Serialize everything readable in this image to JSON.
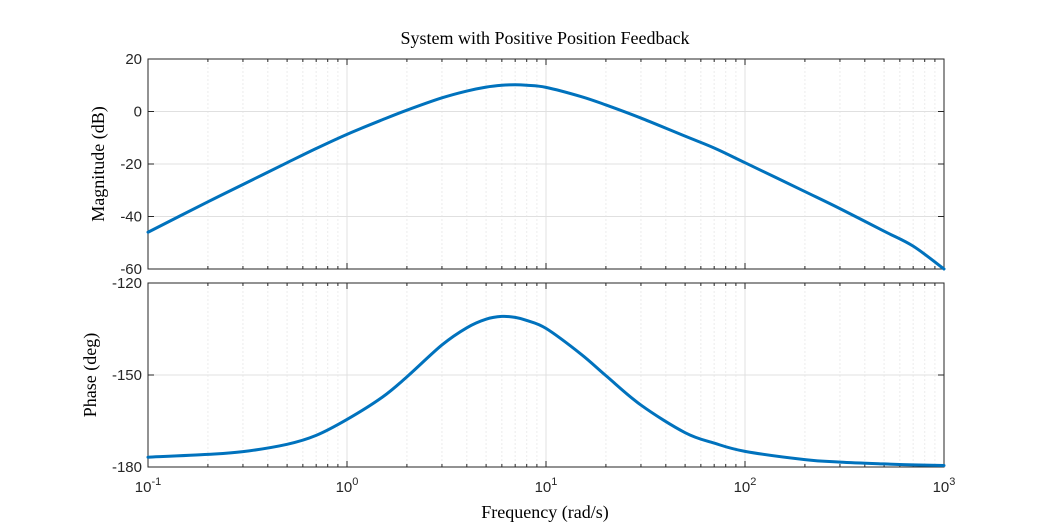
{
  "chart_data": [
    {
      "type": "line",
      "title": "System with Positive Position Feedback",
      "xlabel": "",
      "ylabel": "Magnitude (dB)",
      "xscale": "log",
      "xlim": [
        0.1,
        1000
      ],
      "ylim": [
        -60,
        20
      ],
      "yticks": [
        "20",
        "0",
        "-20",
        "-40",
        "-60"
      ],
      "grid": true,
      "series": [
        {
          "color": "#0072bd",
          "x": [
            0.1,
            0.2,
            0.3,
            0.5,
            0.7,
            1,
            1.5,
            2,
            3,
            4,
            5,
            6,
            7,
            8,
            10,
            15,
            20,
            30,
            50,
            70,
            100,
            200,
            300,
            500,
            700,
            1000
          ],
          "y": [
            -46,
            -34.4,
            -27.8,
            -19.5,
            -14.1,
            -8.7,
            -3.2,
            0.5,
            5.2,
            7.8,
            9.3,
            10,
            10.2,
            10,
            9.2,
            5.7,
            2.5,
            -2.5,
            -9.4,
            -13.9,
            -19.5,
            -30.5,
            -37,
            -45.6,
            -51.3,
            -60
          ]
        }
      ]
    },
    {
      "type": "line",
      "title": "",
      "xlabel": "Frequency (rad/s)",
      "ylabel": "Phase (deg)",
      "xscale": "log",
      "xlim": [
        0.1,
        1000
      ],
      "ylim": [
        -180,
        -120
      ],
      "yticks": [
        "-120",
        "-150",
        "-180"
      ],
      "xticks": [
        {
          "base": "10",
          "exp": "-1"
        },
        {
          "base": "10",
          "exp": "0"
        },
        {
          "base": "10",
          "exp": "1"
        },
        {
          "base": "10",
          "exp": "2"
        },
        {
          "base": "10",
          "exp": "3"
        }
      ],
      "grid": true,
      "series": [
        {
          "color": "#0072bd",
          "x": [
            0.1,
            0.2,
            0.3,
            0.5,
            0.7,
            1,
            1.5,
            2,
            3,
            4,
            5,
            6,
            7,
            8,
            10,
            15,
            20,
            30,
            50,
            70,
            100,
            200,
            300,
            500,
            700,
            1000
          ],
          "y": [
            -176.8,
            -175.9,
            -175,
            -172.6,
            -169.7,
            -164.5,
            -157.3,
            -150.6,
            -140.2,
            -134.6,
            -131.8,
            -130.9,
            -131.2,
            -132.2,
            -134.8,
            -143.2,
            -150.2,
            -159.8,
            -168.8,
            -172.2,
            -174.9,
            -177.6,
            -178.4,
            -179,
            -179.3,
            -179.5
          ]
        }
      ]
    }
  ]
}
